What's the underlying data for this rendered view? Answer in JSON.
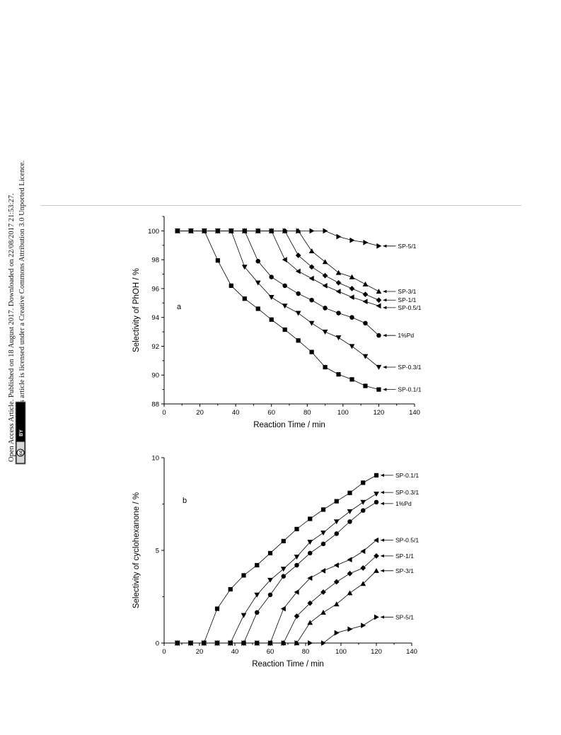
{
  "sidebar": {
    "line1": "Open Access Article. Published on 18 August 2017. Downloaded on 22/08/2017 21:53:27.",
    "line2": "This article is licensed under a Creative Commons Attribution 3.0 Unported Licence.",
    "badge_cc": "cc",
    "badge_by": "BY"
  },
  "chart_data": [
    {
      "type": "line",
      "panel_label": "a",
      "xlabel": "Reaction Time / min",
      "ylabel": "Selectivity of PhOH / %",
      "xlim": [
        0,
        140
      ],
      "ylim": [
        88,
        101
      ],
      "xticks": [
        "0",
        "20",
        "40",
        "60",
        "80",
        "100",
        "120",
        "140"
      ],
      "yticks": [
        "88",
        "90",
        "92",
        "94",
        "96",
        "98",
        "100"
      ],
      "x": [
        7.5,
        15,
        22.5,
        30,
        37.5,
        45,
        52.5,
        60,
        67.5,
        75,
        82.5,
        90,
        97.5,
        105,
        112.5,
        120
      ],
      "series": [
        {
          "name": "SP-5/1",
          "marker": "triangle-right",
          "values": [
            100,
            100,
            100,
            100,
            100,
            100,
            100,
            100,
            100,
            100,
            100,
            100,
            99.6,
            99.35,
            99.2,
            98.95
          ]
        },
        {
          "name": "SP-3/1",
          "marker": "triangle-up",
          "values": [
            100,
            100,
            100,
            100,
            100,
            100,
            100,
            100,
            100,
            100,
            98.6,
            97.85,
            97.1,
            96.8,
            96.3,
            95.8
          ]
        },
        {
          "name": "SP-1/1",
          "marker": "diamond",
          "values": [
            100,
            100,
            100,
            100,
            100,
            100,
            100,
            100,
            100,
            98.3,
            97.5,
            96.9,
            96.4,
            96.0,
            95.6,
            95.2
          ]
        },
        {
          "name": "SP-0.5/1",
          "marker": "triangle-left",
          "values": [
            100,
            100,
            100,
            100,
            100,
            100,
            100,
            100,
            98.0,
            97.2,
            96.7,
            96.2,
            95.8,
            95.4,
            95.1,
            94.8
          ]
        },
        {
          "name": "1%Pd",
          "marker": "circle",
          "values": [
            100,
            100,
            100,
            100,
            100,
            100,
            97.9,
            96.8,
            96.2,
            95.65,
            95.2,
            94.65,
            94.3,
            94.0,
            93.6,
            92.75
          ]
        },
        {
          "name": "SP-0.3/1",
          "marker": "triangle-down",
          "values": [
            100,
            100,
            100,
            100,
            100,
            97.5,
            96.4,
            95.4,
            94.8,
            94.3,
            93.6,
            93.0,
            92.6,
            92.0,
            91.3,
            90.55
          ]
        },
        {
          "name": "SP-0.1/1",
          "marker": "square",
          "values": [
            100,
            100,
            100,
            97.95,
            96.2,
            95.3,
            94.6,
            93.85,
            93.15,
            92.4,
            91.6,
            90.55,
            90.05,
            89.7,
            89.25,
            89.0
          ]
        }
      ]
    },
    {
      "type": "line",
      "panel_label": "b",
      "xlabel": "Reaction Time / min",
      "ylabel": "Selectivity of cyclohexanone / %",
      "xlim": [
        0,
        140
      ],
      "ylim": [
        0,
        10
      ],
      "xticks": [
        "0",
        "20",
        "40",
        "60",
        "80",
        "100",
        "120",
        "140"
      ],
      "yticks": [
        "0",
        "5",
        "10"
      ],
      "x": [
        7.5,
        15,
        22.5,
        30,
        37.5,
        45,
        52.5,
        60,
        67.5,
        75,
        82.5,
        90,
        97.5,
        105,
        112.5,
        120
      ],
      "series": [
        {
          "name": "SP-0.1/1",
          "marker": "square",
          "values": [
            0,
            0,
            0,
            1.85,
            2.9,
            3.65,
            4.2,
            4.85,
            5.5,
            6.15,
            6.7,
            7.2,
            7.65,
            8.1,
            8.65,
            9.05
          ]
        },
        {
          "name": "SP-0.3/1",
          "marker": "triangle-down",
          "values": [
            0,
            0,
            0,
            0,
            0,
            1.5,
            2.6,
            3.4,
            4.0,
            4.65,
            5.45,
            5.95,
            6.55,
            7.1,
            7.6,
            8.05
          ]
        },
        {
          "name": "1%Pd",
          "marker": "circle",
          "values": [
            0,
            0,
            0,
            0,
            0,
            0,
            1.65,
            2.6,
            3.6,
            4.2,
            4.85,
            5.35,
            5.9,
            6.55,
            7.15,
            7.6
          ]
        },
        {
          "name": "SP-0.5/1",
          "marker": "triangle-left",
          "values": [
            0,
            0,
            0,
            0,
            0,
            0,
            0,
            0,
            1.85,
            2.75,
            3.5,
            3.9,
            4.2,
            4.5,
            4.95,
            5.55
          ]
        },
        {
          "name": "SP-1/1",
          "marker": "diamond",
          "values": [
            0,
            0,
            0,
            0,
            0,
            0,
            0,
            0,
            0,
            1.45,
            2.15,
            2.75,
            3.3,
            3.75,
            4.05,
            4.7
          ]
        },
        {
          "name": "SP-3/1",
          "marker": "triangle-up",
          "values": [
            0,
            0,
            0,
            0,
            0,
            0,
            0,
            0,
            0,
            0,
            1.1,
            1.65,
            2.1,
            2.7,
            3.2,
            3.9
          ]
        },
        {
          "name": "SP-5/1",
          "marker": "triangle-right",
          "values": [
            0,
            0,
            0,
            0,
            0,
            0,
            0,
            0,
            0,
            0,
            0,
            0,
            0.55,
            0.75,
            0.95,
            1.4
          ]
        }
      ]
    }
  ]
}
